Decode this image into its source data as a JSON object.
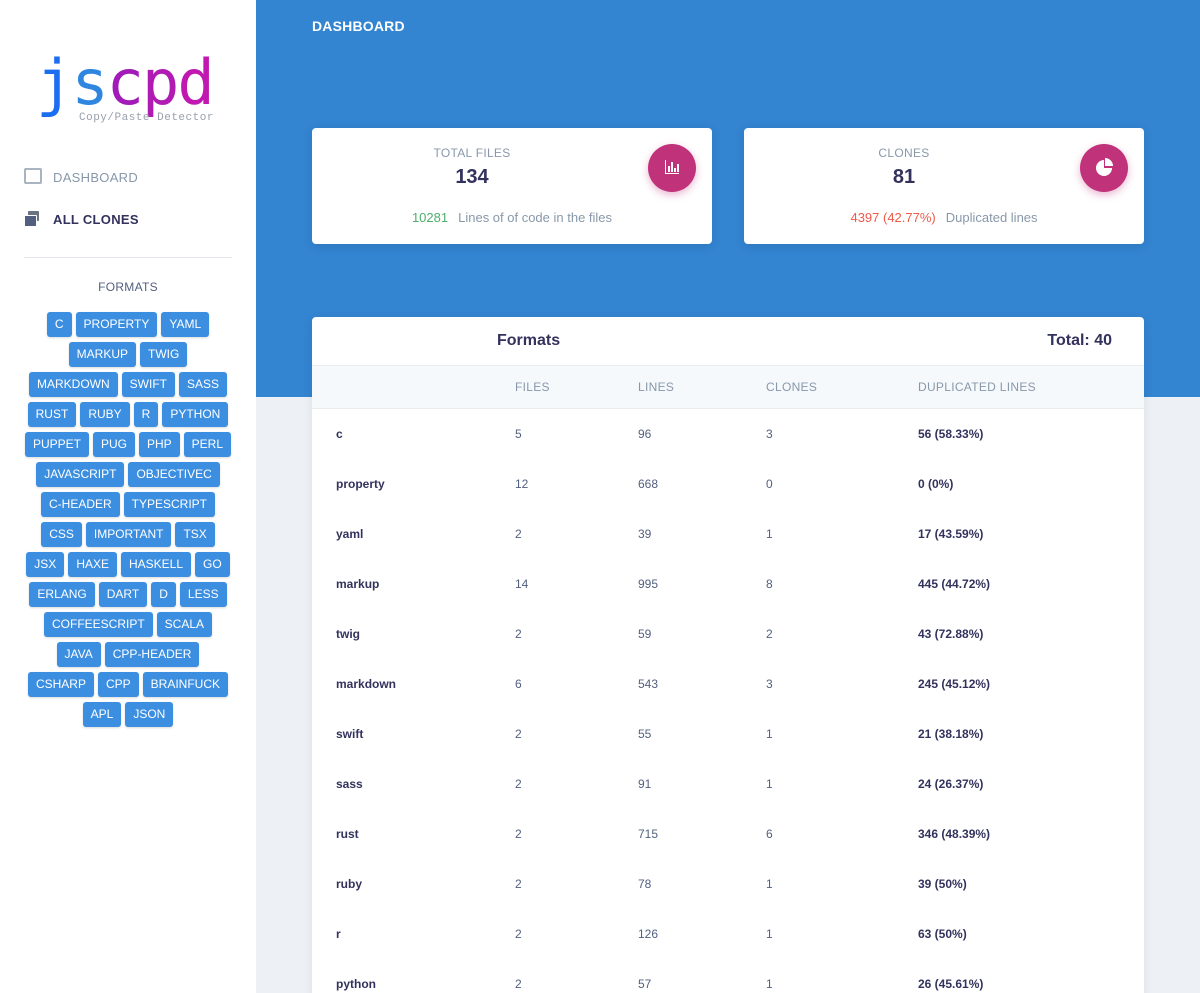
{
  "logo": {
    "letters": [
      "j",
      "s",
      "c",
      "p",
      "d"
    ],
    "subtitle": "Copy/Paste Detector"
  },
  "nav": {
    "dashboard": "DASHBOARD",
    "all_clones": "ALL CLONES"
  },
  "sidebar": {
    "formats_heading": "FORMATS",
    "tags": [
      "C",
      "PROPERTY",
      "YAML",
      "MARKUP",
      "TWIG",
      "MARKDOWN",
      "SWIFT",
      "SASS",
      "RUST",
      "RUBY",
      "R",
      "PYTHON",
      "PUPPET",
      "PUG",
      "PHP",
      "PERL",
      "JAVASCRIPT",
      "OBJECTIVEC",
      "C-HEADER",
      "TYPESCRIPT",
      "CSS",
      "IMPORTANT",
      "TSX",
      "JSX",
      "HAXE",
      "HASKELL",
      "GO",
      "ERLANG",
      "DART",
      "D",
      "LESS",
      "COFFEESCRIPT",
      "SCALA",
      "JAVA",
      "CPP-HEADER",
      "CSHARP",
      "CPP",
      "BRAINFUCK",
      "APL",
      "JSON"
    ]
  },
  "header": {
    "title": "DASHBOARD"
  },
  "cards": {
    "files": {
      "label": "TOTAL FILES",
      "value": "134",
      "foot_number": "10281",
      "foot_text": "Lines of of code in the files",
      "icon": "bar-chart-icon"
    },
    "clones": {
      "label": "CLONES",
      "value": "81",
      "foot_number": "4397 (42.77%)",
      "foot_text": "Duplicated lines",
      "icon": "pie-chart-icon"
    }
  },
  "colors": {
    "primary": "#3384d1",
    "tag": "#3c8fe0",
    "badge": "#c0327a",
    "positive": "#4caf6a",
    "negative": "#f0594a"
  },
  "table": {
    "title": "Formats",
    "total": "Total: 40",
    "headers": [
      "",
      "FILES",
      "LINES",
      "CLONES",
      "DUPLICATED LINES"
    ],
    "rows": [
      {
        "name": "c",
        "files": "5",
        "lines": "96",
        "clones": "3",
        "dup": "56 (58.33%)"
      },
      {
        "name": "property",
        "files": "12",
        "lines": "668",
        "clones": "0",
        "dup": "0 (0%)"
      },
      {
        "name": "yaml",
        "files": "2",
        "lines": "39",
        "clones": "1",
        "dup": "17 (43.59%)"
      },
      {
        "name": "markup",
        "files": "14",
        "lines": "995",
        "clones": "8",
        "dup": "445 (44.72%)"
      },
      {
        "name": "twig",
        "files": "2",
        "lines": "59",
        "clones": "2",
        "dup": "43 (72.88%)"
      },
      {
        "name": "markdown",
        "files": "6",
        "lines": "543",
        "clones": "3",
        "dup": "245 (45.12%)"
      },
      {
        "name": "swift",
        "files": "2",
        "lines": "55",
        "clones": "1",
        "dup": "21 (38.18%)"
      },
      {
        "name": "sass",
        "files": "2",
        "lines": "91",
        "clones": "1",
        "dup": "24 (26.37%)"
      },
      {
        "name": "rust",
        "files": "2",
        "lines": "715",
        "clones": "6",
        "dup": "346 (48.39%)"
      },
      {
        "name": "ruby",
        "files": "2",
        "lines": "78",
        "clones": "1",
        "dup": "39 (50%)"
      },
      {
        "name": "r",
        "files": "2",
        "lines": "126",
        "clones": "1",
        "dup": "63 (50%)"
      },
      {
        "name": "python",
        "files": "2",
        "lines": "57",
        "clones": "1",
        "dup": "26 (45.61%)"
      }
    ]
  }
}
